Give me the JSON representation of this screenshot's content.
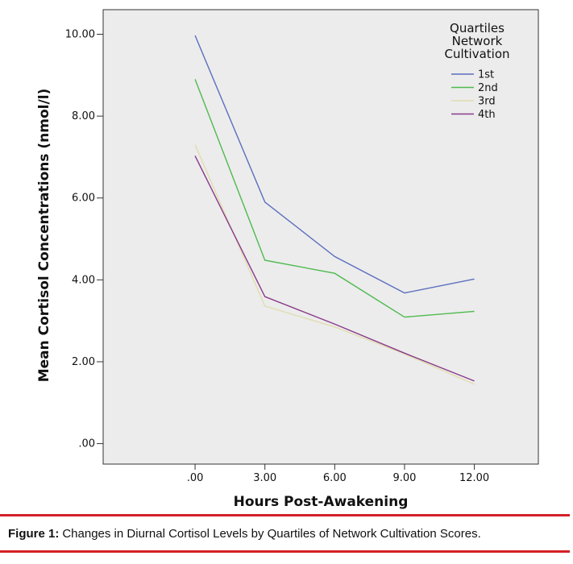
{
  "chart_data": {
    "type": "line",
    "xlabel": "Hours Post-Awakening",
    "ylabel": "Mean Cortisol Concentrations (nmol/l)",
    "x": [
      0,
      3,
      6,
      9,
      12
    ],
    "x_tick_labels": [
      ".00",
      "3.00",
      "6.00",
      "9.00",
      "12.00"
    ],
    "y_ticks": [
      0,
      2,
      4,
      6,
      8,
      10
    ],
    "y_tick_labels": [
      ".00",
      "2.00",
      "4.00",
      "6.00",
      "8.00",
      "10.00"
    ],
    "xlim": [
      -3.95,
      14.75
    ],
    "ylim": [
      -0.5,
      10.6
    ],
    "grid": false,
    "legend_placement": "top-right",
    "legend_title": [
      "Quartiles",
      "Network",
      "Cultivation"
    ],
    "series": [
      {
        "name": "1st",
        "color": "#5b6fbf",
        "values": [
          9.97,
          5.9,
          4.57,
          3.68,
          4.02
        ]
      },
      {
        "name": "2nd",
        "color": "#4fba4f",
        "values": [
          8.9,
          4.48,
          4.16,
          3.09,
          3.23
        ]
      },
      {
        "name": "3rd",
        "color": "#e0ddb0",
        "values": [
          7.3,
          3.36,
          2.85,
          2.19,
          1.45
        ]
      },
      {
        "name": "4th",
        "color": "#8a3a8a",
        "values": [
          7.03,
          3.59,
          2.92,
          2.21,
          1.53
        ]
      }
    ]
  },
  "caption": {
    "label": "Figure 1:",
    "text": "Changes in Diurnal Cortisol Levels by Quartiles of Network Cultivation Scores."
  }
}
